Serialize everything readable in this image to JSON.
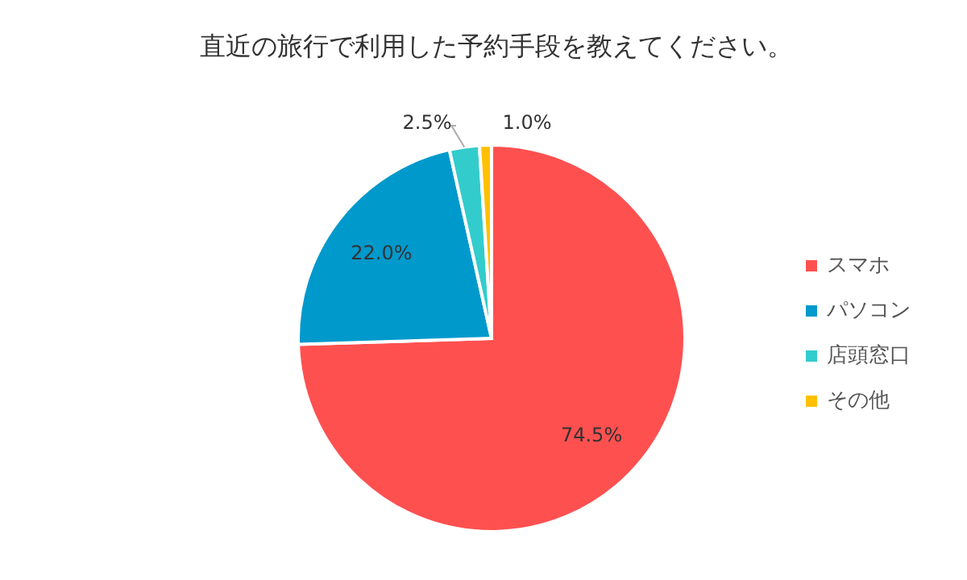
{
  "chart_data": {
    "type": "pie",
    "title": "直近の旅行で利用した予約手段を教えてください。",
    "categories": [
      "スマホ",
      "パソコン",
      "店頭窓口",
      "その他"
    ],
    "values": [
      74.5,
      22.0,
      2.5,
      1.0
    ],
    "value_labels": [
      "74.5%",
      "22.0%",
      "2.5%",
      "1.0%"
    ],
    "colors": [
      "#ff5050",
      "#0099cc",
      "#33cccc",
      "#ffc000"
    ],
    "legend": "right"
  }
}
